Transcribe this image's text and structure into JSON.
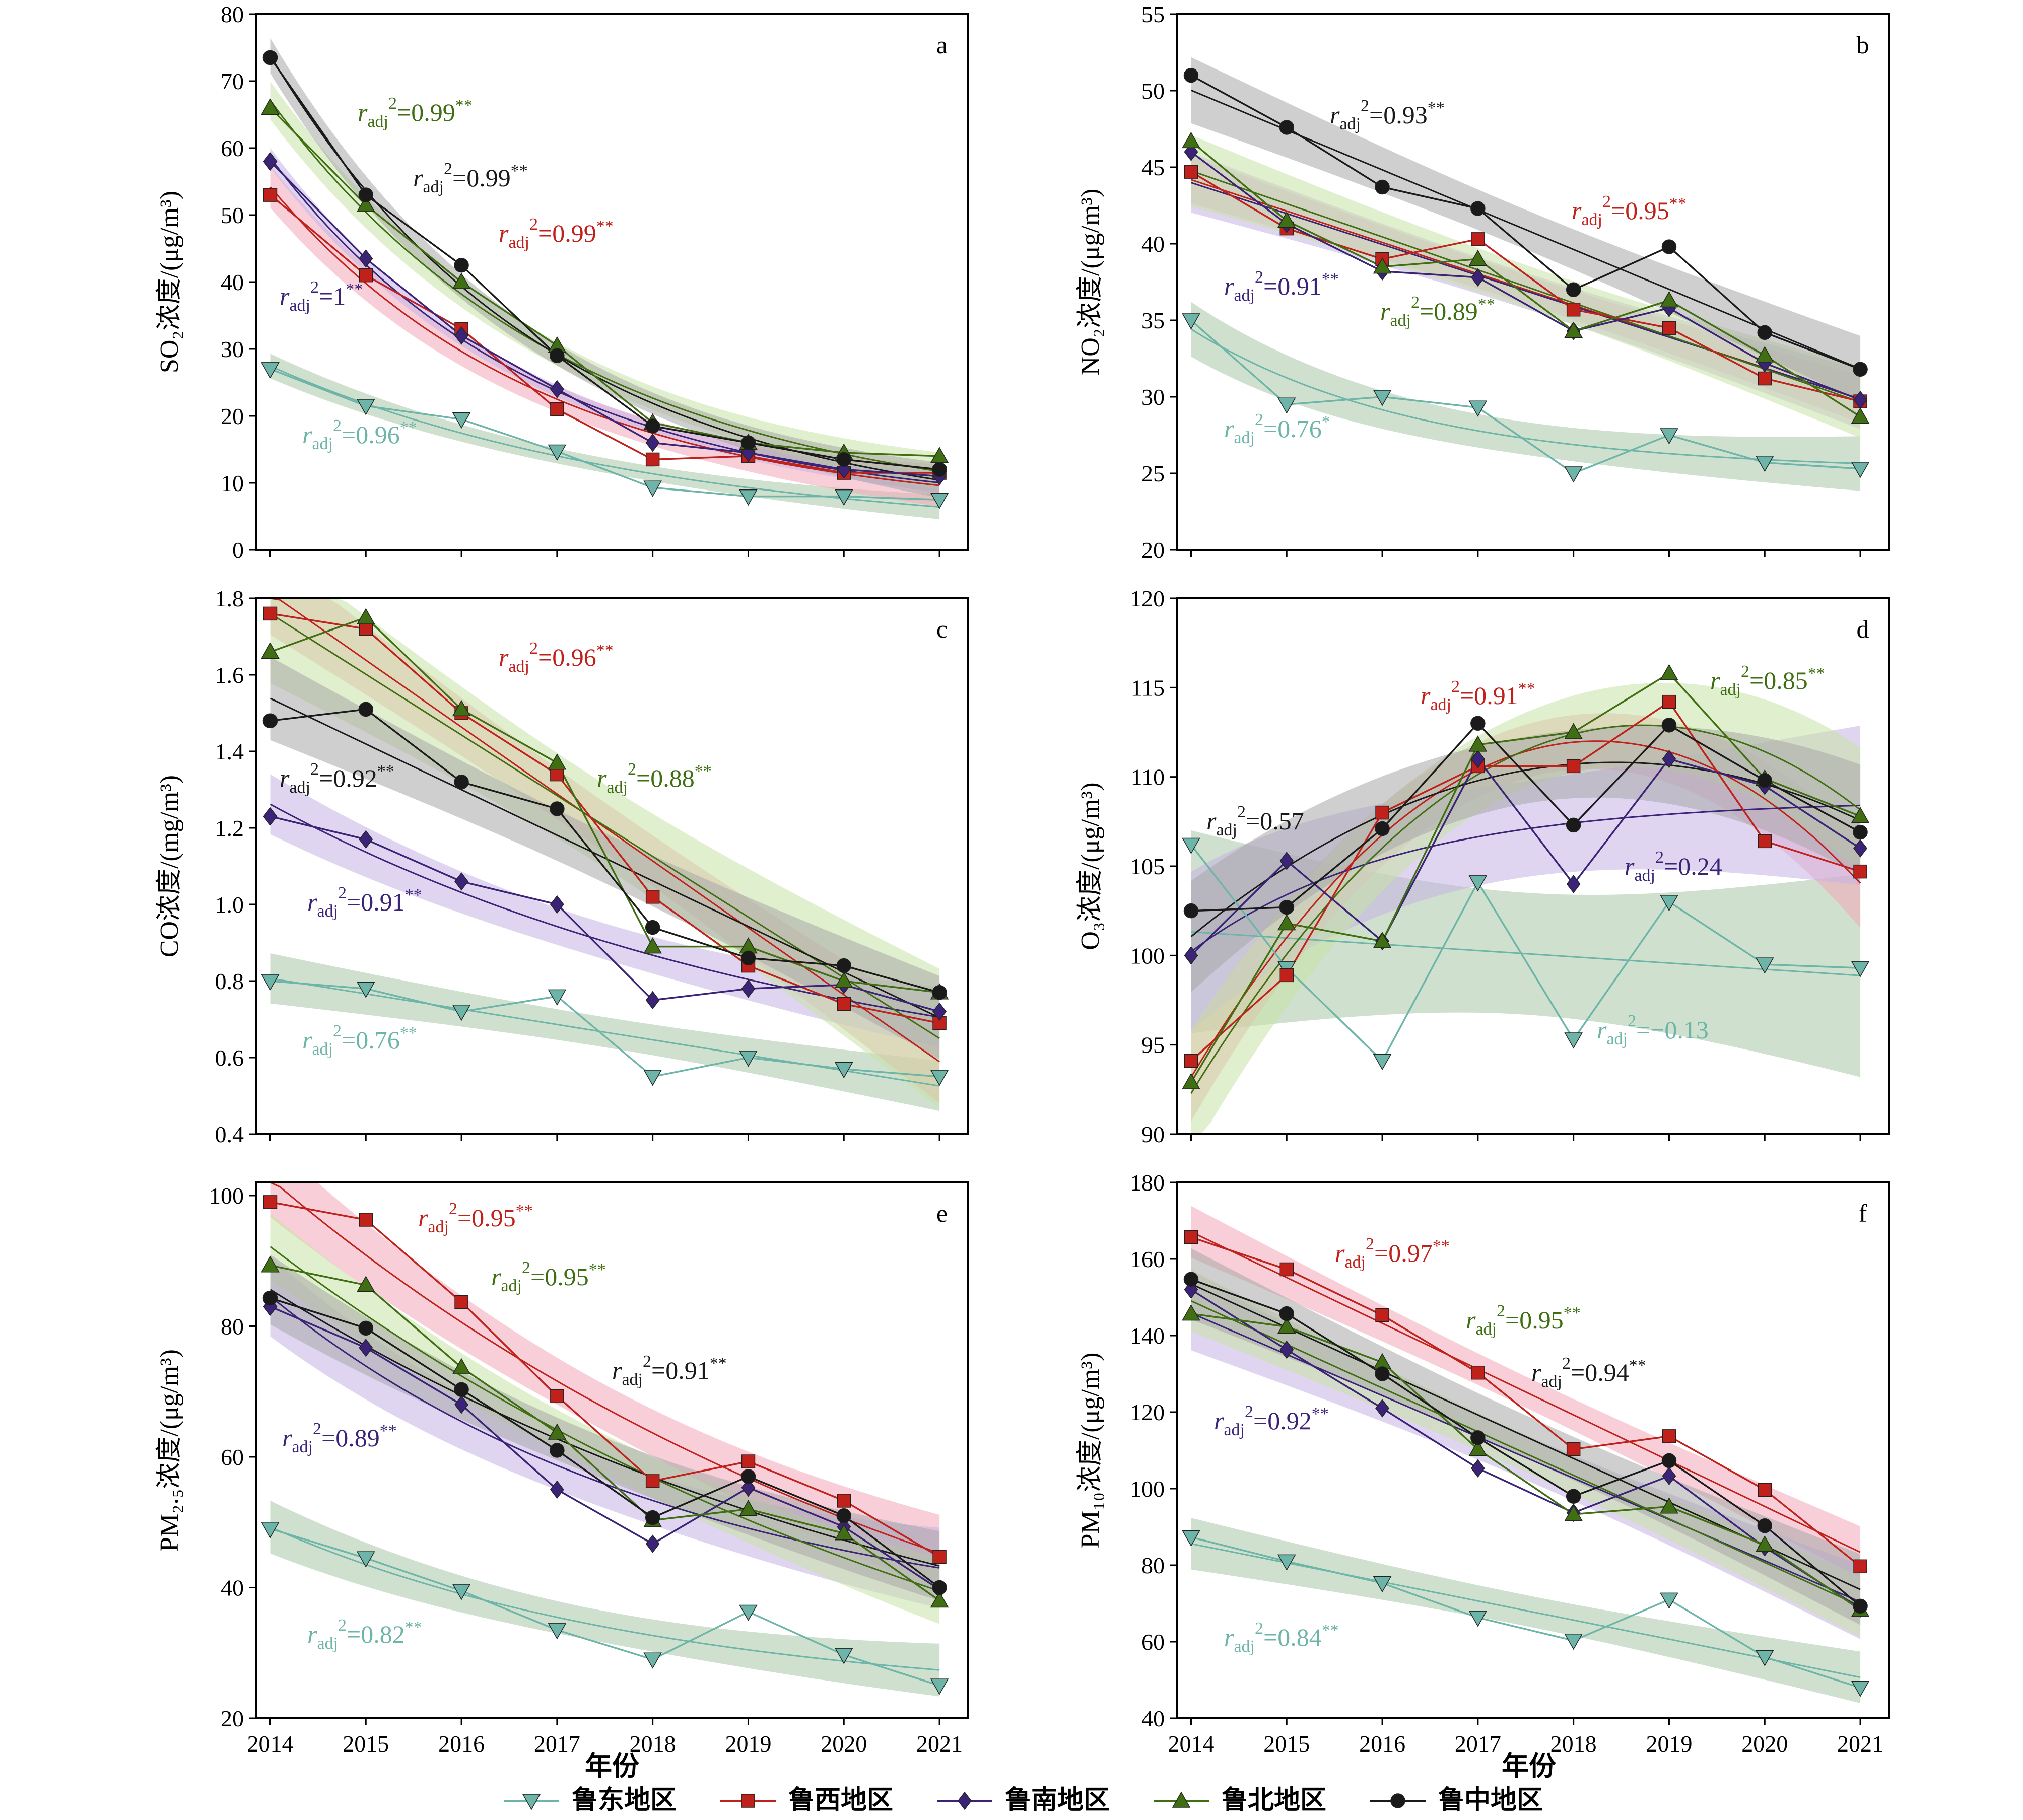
{
  "x_axis_title": "年份",
  "years": [
    "2014",
    "2015",
    "2016",
    "2017",
    "2018",
    "2019",
    "2020",
    "2021"
  ],
  "colors": {
    "鲁东地区": "#6db5a8",
    "鲁西地区": "#c0211b",
    "鲁南地区": "#3b2477",
    "鲁北地区": "#3f6f12",
    "鲁中地区": "#1a1a1a"
  },
  "band_colors": {
    "鲁东地区": "#a9c7a6",
    "鲁西地区": "#f2a7b8",
    "鲁南地区": "#c7b3e5",
    "鲁北地区": "#c7e1a4",
    "鲁中地区": "#a8a8a8"
  },
  "legend": [
    {
      "name": "鲁东地区",
      "marker": "triangle-down"
    },
    {
      "name": "鲁西地区",
      "marker": "square"
    },
    {
      "name": "鲁南地区",
      "marker": "diamond"
    },
    {
      "name": "鲁北地区",
      "marker": "triangle-up"
    },
    {
      "name": "鲁中地区",
      "marker": "circle"
    }
  ],
  "chart_data": [
    {
      "panel": "a",
      "type": "line",
      "ylabel": "SO₂浓度/(μg/m³)",
      "ylim": [
        0,
        80
      ],
      "yticks": [
        "0",
        "10",
        "20",
        "30",
        "40",
        "50",
        "60",
        "70",
        "80"
      ],
      "x": [
        2014,
        2015,
        2016,
        2017,
        2018,
        2019,
        2020,
        2021
      ],
      "series": [
        {
          "name": "鲁东地区",
          "values": [
            27,
            21.5,
            19.5,
            14.7,
            9.3,
            8.0,
            8.0,
            7.5
          ],
          "fit": "exp"
        },
        {
          "name": "鲁西地区",
          "values": [
            53,
            41,
            33,
            21,
            13.5,
            14,
            11.5,
            11.5
          ],
          "fit": "exp"
        },
        {
          "name": "鲁南地区",
          "values": [
            58,
            43.5,
            32,
            24,
            16,
            14.5,
            12,
            11
          ],
          "fit": "exp"
        },
        {
          "name": "鲁北地区",
          "values": [
            66,
            51.5,
            40,
            30.5,
            19,
            16,
            14.5,
            14
          ],
          "fit": "exp"
        },
        {
          "name": "鲁中地区",
          "values": [
            73.5,
            53,
            42.5,
            29,
            18.5,
            16,
            13.5,
            12
          ],
          "fit": "exp"
        }
      ],
      "annotations": [
        {
          "series": "鲁北地区",
          "text": "=0.99",
          "sig": "**"
        },
        {
          "series": "鲁中地区",
          "text": "=0.99",
          "sig": "**"
        },
        {
          "series": "鲁西地区",
          "text": "=0.99",
          "sig": "**"
        },
        {
          "series": "鲁南地区",
          "text": "=1",
          "sig": "**"
        },
        {
          "series": "鲁东地区",
          "text": "=0.96",
          "sig": "**"
        }
      ]
    },
    {
      "panel": "b",
      "type": "line",
      "ylabel": "NO₂浓度/(μg/m³)",
      "ylim": [
        20,
        55
      ],
      "yticks": [
        "20",
        "25",
        "30",
        "35",
        "40",
        "45",
        "50",
        "55"
      ],
      "x": [
        2014,
        2015,
        2016,
        2017,
        2018,
        2019,
        2020,
        2021
      ],
      "series": [
        {
          "name": "鲁东地区",
          "values": [
            35,
            29.5,
            30,
            29.3,
            25,
            27.5,
            25.7,
            25.3
          ],
          "fit": "exp"
        },
        {
          "name": "鲁西地区",
          "values": [
            44.7,
            41,
            39,
            40.3,
            35.7,
            34.5,
            31.2,
            29.7
          ],
          "fit": "lin"
        },
        {
          "name": "鲁南地区",
          "values": [
            46,
            41.3,
            38.2,
            37.8,
            34.3,
            35.8,
            32.2,
            29.8
          ],
          "fit": "lin"
        },
        {
          "name": "鲁北地区",
          "values": [
            46.7,
            41.5,
            38.5,
            39,
            34.3,
            36.3,
            32.7,
            28.7
          ],
          "fit": "lin"
        },
        {
          "name": "鲁中地区",
          "values": [
            51,
            47.6,
            43.7,
            42.3,
            37,
            39.8,
            34.2,
            31.8
          ],
          "fit": "lin"
        }
      ],
      "annotations": [
        {
          "series": "鲁中地区",
          "text": "=0.93",
          "sig": "**"
        },
        {
          "series": "鲁西地区",
          "text": "=0.95",
          "sig": "**"
        },
        {
          "series": "鲁南地区",
          "text": "=0.91",
          "sig": "**"
        },
        {
          "series": "鲁北地区",
          "text": "=0.89",
          "sig": "**"
        },
        {
          "series": "鲁东地区",
          "text": "=0.76",
          "sig": "*"
        }
      ]
    },
    {
      "panel": "c",
      "type": "line",
      "ylabel": "CO浓度/(mg/m³)",
      "ylim": [
        0.4,
        1.8
      ],
      "yticks": [
        "0.4",
        "0.6",
        "0.8",
        "1.0",
        "1.2",
        "1.4",
        "1.6",
        "1.8"
      ],
      "x": [
        2014,
        2015,
        2016,
        2017,
        2018,
        2019,
        2020,
        2021
      ],
      "series": [
        {
          "name": "鲁东地区",
          "values": [
            0.8,
            0.78,
            0.72,
            0.76,
            0.55,
            0.6,
            0.57,
            0.55
          ],
          "fit": "lin"
        },
        {
          "name": "鲁西地区",
          "values": [
            1.76,
            1.72,
            1.5,
            1.34,
            1.02,
            0.84,
            0.74,
            0.69
          ],
          "fit": "lin"
        },
        {
          "name": "鲁南地区",
          "values": [
            1.23,
            1.17,
            1.06,
            1.0,
            0.75,
            0.78,
            0.79,
            0.72
          ],
          "fit": "exp"
        },
        {
          "name": "鲁北地区",
          "values": [
            1.66,
            1.75,
            1.51,
            1.37,
            0.89,
            0.89,
            0.8,
            0.77
          ],
          "fit": "lin"
        },
        {
          "name": "鲁中地区",
          "values": [
            1.48,
            1.51,
            1.32,
            1.25,
            0.94,
            0.86,
            0.84,
            0.77
          ],
          "fit": "lin"
        }
      ],
      "annotations": [
        {
          "series": "鲁西地区",
          "text": "=0.96",
          "sig": "**"
        },
        {
          "series": "鲁中地区",
          "text": "=0.92",
          "sig": "**"
        },
        {
          "series": "鲁北地区",
          "text": "=0.88",
          "sig": "**"
        },
        {
          "series": "鲁南地区",
          "text": "=0.91",
          "sig": "**"
        },
        {
          "series": "鲁东地区",
          "text": "=0.76",
          "sig": "**"
        }
      ]
    },
    {
      "panel": "d",
      "type": "line",
      "ylabel": "O₃浓度/(μg/m³)",
      "ylim": [
        90,
        120
      ],
      "yticks": [
        "90",
        "95",
        "100",
        "105",
        "110",
        "115",
        "120"
      ],
      "x": [
        2014,
        2015,
        2016,
        2017,
        2018,
        2019,
        2020,
        2021
      ],
      "series": [
        {
          "name": "鲁东地区",
          "values": [
            106.2,
            99.3,
            94.1,
            104.1,
            95.3,
            103,
            99.5,
            99.3
          ],
          "fit": "lin"
        },
        {
          "name": "鲁西地区",
          "values": [
            94.1,
            98.9,
            108,
            110.6,
            110.6,
            114.2,
            106.4,
            104.7
          ],
          "fit": "quad"
        },
        {
          "name": "鲁南地区",
          "values": [
            100,
            105.3,
            100.8,
            111,
            104,
            111,
            109.5,
            106
          ],
          "fit": "exp"
        },
        {
          "name": "鲁北地区",
          "values": [
            92.9,
            101.8,
            100.8,
            111.8,
            112.5,
            115.8,
            109.9,
            107.8
          ],
          "fit": "quad"
        },
        {
          "name": "鲁中地区",
          "values": [
            102.5,
            102.7,
            107.1,
            113,
            107.3,
            112.9,
            109.8,
            106.9
          ],
          "fit": "quad"
        }
      ],
      "annotations": [
        {
          "series": "鲁西地区",
          "text": "=0.91",
          "sig": "**"
        },
        {
          "series": "鲁北地区",
          "text": "=0.85",
          "sig": "**"
        },
        {
          "series": "鲁中地区",
          "text": "=0.57",
          "sig": ""
        },
        {
          "series": "鲁南地区",
          "text": "=0.24",
          "sig": ""
        },
        {
          "series": "鲁东地区",
          "text": "=−0.13",
          "sig": ""
        }
      ]
    },
    {
      "panel": "e",
      "type": "line",
      "ylabel": "PM₂.₅浓度/(μg/m³)",
      "ylim": [
        20,
        102
      ],
      "yticks": [
        "20",
        "40",
        "60",
        "80",
        "100"
      ],
      "x": [
        2014,
        2015,
        2016,
        2017,
        2018,
        2019,
        2020,
        2021
      ],
      "series": [
        {
          "name": "鲁东地区",
          "values": [
            49,
            44.5,
            39.5,
            33.5,
            29,
            36.3,
            29.7,
            25
          ],
          "fit": "exp"
        },
        {
          "name": "鲁西地区",
          "values": [
            99,
            96.3,
            83.7,
            69.3,
            56.3,
            59.3,
            53.3,
            44.7
          ],
          "fit": "exp"
        },
        {
          "name": "鲁南地区",
          "values": [
            83,
            76.7,
            68,
            55,
            46.7,
            55.3,
            49.3,
            39.7
          ],
          "fit": "exp"
        },
        {
          "name": "鲁北地区",
          "values": [
            89.3,
            86.3,
            73.7,
            63.7,
            50.3,
            52,
            48.3,
            38
          ],
          "fit": "exp"
        },
        {
          "name": "鲁中地区",
          "values": [
            84.3,
            79.7,
            70.3,
            61,
            50.7,
            57,
            51,
            40
          ],
          "fit": "exp"
        }
      ],
      "annotations": [
        {
          "series": "鲁西地区",
          "text": "=0.95",
          "sig": "**"
        },
        {
          "series": "鲁北地区",
          "text": "=0.95",
          "sig": "**"
        },
        {
          "series": "鲁中地区",
          "text": "=0.91",
          "sig": "**"
        },
        {
          "series": "鲁南地区",
          "text": "=0.89",
          "sig": "**"
        },
        {
          "series": "鲁东地区",
          "text": "=0.82",
          "sig": "**"
        }
      ]
    },
    {
      "panel": "f",
      "type": "line",
      "ylabel": "PM₁₀浓度/(μg/m³)",
      "ylim": [
        40,
        180
      ],
      "yticks": [
        "40",
        "60",
        "80",
        "100",
        "120",
        "140",
        "160",
        "180"
      ],
      "x": [
        2014,
        2015,
        2016,
        2017,
        2018,
        2019,
        2020,
        2021
      ],
      "series": [
        {
          "name": "鲁东地区",
          "values": [
            87.3,
            81,
            75.3,
            66.3,
            60.3,
            71,
            56,
            48
          ],
          "fit": "lin"
        },
        {
          "name": "鲁西地区",
          "values": [
            165.7,
            157.3,
            145.3,
            130.3,
            110.3,
            113.7,
            99.7,
            79.7
          ],
          "fit": "lin"
        },
        {
          "name": "鲁南地区",
          "values": [
            152,
            136.3,
            121,
            105.3,
            93.7,
            103.3,
            84.7,
            68.7
          ],
          "fit": "lin"
        },
        {
          "name": "鲁北地区",
          "values": [
            145.7,
            142.3,
            133,
            110.3,
            93.3,
            95.3,
            85.3,
            68.3
          ],
          "fit": "lin"
        },
        {
          "name": "鲁中地区",
          "values": [
            154.7,
            145.7,
            130,
            113.3,
            98,
            107.3,
            90.3,
            69.3
          ],
          "fit": "lin"
        }
      ],
      "annotations": [
        {
          "series": "鲁西地区",
          "text": "=0.97",
          "sig": "**"
        },
        {
          "series": "鲁北地区",
          "text": "=0.95",
          "sig": "**"
        },
        {
          "series": "鲁中地区",
          "text": "=0.94",
          "sig": "**"
        },
        {
          "series": "鲁南地区",
          "text": "=0.92",
          "sig": "**"
        },
        {
          "series": "鲁东地区",
          "text": "=0.84",
          "sig": "**"
        }
      ]
    }
  ]
}
